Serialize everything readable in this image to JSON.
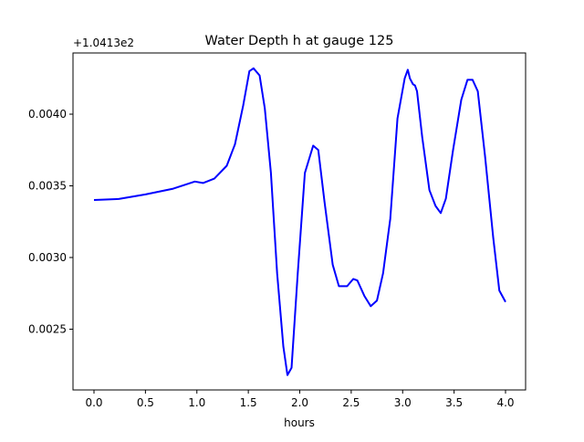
{
  "chart_data": {
    "type": "line",
    "title": "Water Depth h at gauge 125",
    "xlabel": "hours",
    "ylabel": "",
    "offset_text": "+1.0413e2",
    "xlim": [
      -0.204,
      4.195
    ],
    "ylim": [
      0.002076,
      0.004427
    ],
    "xticks": [
      0.0,
      0.5,
      1.0,
      1.5,
      2.0,
      2.5,
      3.0,
      3.5,
      4.0
    ],
    "xtick_labels": [
      "0.0",
      "0.5",
      "1.0",
      "1.5",
      "2.0",
      "2.5",
      "3.0",
      "3.5",
      "4.0"
    ],
    "yticks": [
      0.0025,
      0.003,
      0.0035,
      0.004
    ],
    "ytick_labels": [
      "0.0025",
      "0.0030",
      "0.0035",
      "0.0040"
    ],
    "grid": false,
    "series": [
      {
        "name": "h",
        "color": "#0000ff",
        "x": [
          0,
          0.24,
          0.5,
          0.77,
          0.98,
          1.06,
          1.17,
          1.29,
          1.37,
          1.45,
          1.51,
          1.55,
          1.61,
          1.66,
          1.72,
          1.78,
          1.84,
          1.88,
          1.92,
          1.98,
          2.05,
          2.13,
          2.18,
          2.24,
          2.32,
          2.38,
          2.46,
          2.52,
          2.56,
          2.63,
          2.69,
          2.75,
          2.81,
          2.88,
          2.95,
          3.02,
          3.05,
          3.07,
          3.1,
          3.12,
          3.14,
          3.19,
          3.26,
          3.32,
          3.37,
          3.42,
          3.49,
          3.57,
          3.63,
          3.68,
          3.73,
          3.8,
          3.88,
          3.94,
          4.0
        ],
        "y": [
          0.003401,
          0.003408,
          0.00344,
          0.00348,
          0.00353,
          0.00352,
          0.00355,
          0.00364,
          0.00379,
          0.00406,
          0.0043,
          0.00432,
          0.00427,
          0.00404,
          0.00359,
          0.00289,
          0.00238,
          0.00218,
          0.00223,
          0.00289,
          0.00359,
          0.00378,
          0.00375,
          0.00339,
          0.00295,
          0.0028,
          0.0028,
          0.00285,
          0.00284,
          0.00273,
          0.00266,
          0.0027,
          0.00289,
          0.00327,
          0.00397,
          0.00425,
          0.00431,
          0.00425,
          0.00421,
          0.0042,
          0.00416,
          0.00384,
          0.00347,
          0.00336,
          0.00331,
          0.00341,
          0.00375,
          0.0041,
          0.00424,
          0.00424,
          0.00416,
          0.00371,
          0.00314,
          0.00277,
          0.00269
        ]
      }
    ]
  }
}
